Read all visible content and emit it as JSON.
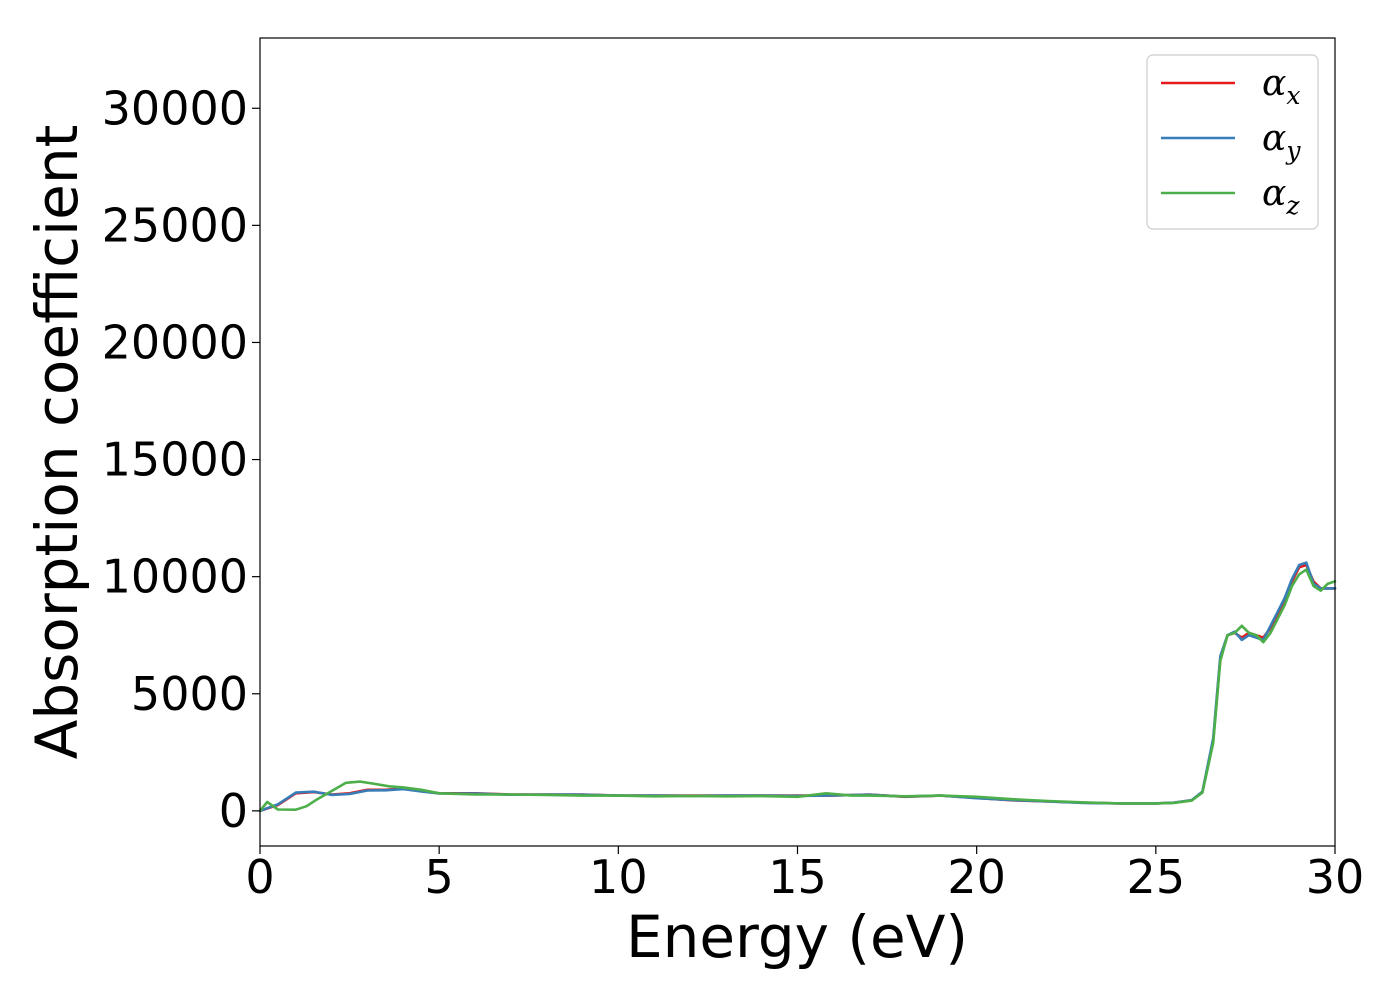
{
  "chart_data": {
    "type": "line",
    "xlabel": "Energy (eV)",
    "ylabel": "Absorption coefficient",
    "xlim": [
      0,
      30
    ],
    "ylim": [
      -1500,
      33000
    ],
    "xticks": [
      0,
      5,
      10,
      15,
      20,
      25,
      30
    ],
    "yticks": [
      0,
      5000,
      10000,
      15000,
      20000,
      25000,
      30000
    ],
    "grid": false,
    "legend_position": "top-right",
    "series": [
      {
        "name": "α",
        "subscript": "x",
        "color": "#e41a1c",
        "x": [
          0,
          0.5,
          1.0,
          1.5,
          2.0,
          2.5,
          3.0,
          3.5,
          4.0,
          4.5,
          5.0,
          6.0,
          7.0,
          8.0,
          9.0,
          10.0,
          11.0,
          12.0,
          13.0,
          14.0,
          15.0,
          16.0,
          17.0,
          18.0,
          19.0,
          20.0,
          21.0,
          22.0,
          23.0,
          24.0,
          25.0,
          25.5,
          26.0,
          26.3,
          26.6,
          26.8,
          27.0,
          27.2,
          27.4,
          27.6,
          27.8,
          28.0,
          28.2,
          28.4,
          28.6,
          28.8,
          29.0,
          29.2,
          29.4,
          29.6,
          29.8,
          30.0
        ],
        "y": [
          0,
          250,
          750,
          800,
          700,
          750,
          900,
          900,
          950,
          850,
          750,
          750,
          700,
          700,
          700,
          650,
          650,
          650,
          650,
          650,
          650,
          650,
          700,
          600,
          650,
          550,
          450,
          400,
          350,
          320,
          320,
          350,
          450,
          800,
          3000,
          6500,
          7500,
          7600,
          7400,
          7600,
          7500,
          7400,
          7800,
          8400,
          9000,
          9800,
          10400,
          10500,
          9800,
          9500,
          9500,
          9500
        ]
      },
      {
        "name": "α",
        "subscript": "y",
        "color": "#377eb8",
        "x": [
          0,
          0.5,
          1.0,
          1.5,
          2.0,
          2.5,
          3.0,
          3.5,
          4.0,
          4.5,
          5.0,
          6.0,
          7.0,
          8.0,
          9.0,
          10.0,
          11.0,
          12.0,
          13.0,
          14.0,
          15.0,
          16.0,
          17.0,
          18.0,
          19.0,
          20.0,
          21.0,
          22.0,
          23.0,
          24.0,
          25.0,
          25.5,
          26.0,
          26.3,
          26.6,
          26.8,
          27.0,
          27.2,
          27.4,
          27.6,
          27.8,
          28.0,
          28.2,
          28.4,
          28.6,
          28.8,
          29.0,
          29.2,
          29.4,
          29.6,
          29.8,
          30.0
        ],
        "y": [
          0,
          280,
          780,
          820,
          680,
          720,
          870,
          880,
          930,
          830,
          740,
          740,
          690,
          700,
          690,
          650,
          650,
          640,
          650,
          650,
          640,
          660,
          690,
          610,
          650,
          540,
          460,
          400,
          340,
          320,
          320,
          350,
          460,
          820,
          3100,
          6600,
          7500,
          7650,
          7300,
          7500,
          7400,
          7300,
          7900,
          8500,
          9100,
          9900,
          10500,
          10600,
          9700,
          9500,
          9500,
          9500
        ]
      },
      {
        "name": "α",
        "subscript": "z",
        "color": "#4daf4a",
        "x": [
          0,
          0.2,
          0.5,
          1.0,
          1.3,
          1.6,
          2.0,
          2.4,
          2.8,
          3.2,
          3.6,
          4.0,
          4.5,
          5.0,
          6.0,
          7.0,
          8.0,
          9.0,
          10.0,
          11.0,
          12.0,
          13.0,
          14.0,
          15.0,
          15.8,
          16.5,
          17.0,
          18.0,
          19.0,
          20.0,
          21.0,
          22.0,
          23.0,
          24.0,
          25.0,
          25.5,
          26.0,
          26.3,
          26.6,
          26.8,
          27.0,
          27.2,
          27.4,
          27.6,
          27.8,
          28.0,
          28.2,
          28.4,
          28.6,
          28.8,
          29.0,
          29.2,
          29.4,
          29.6,
          29.8,
          30.0
        ],
        "y": [
          0,
          380,
          60,
          50,
          200,
          500,
          850,
          1200,
          1250,
          1150,
          1050,
          1000,
          900,
          750,
          700,
          700,
          680,
          650,
          650,
          620,
          640,
          620,
          630,
          600,
          750,
          650,
          650,
          620,
          650,
          600,
          500,
          420,
          360,
          320,
          320,
          340,
          440,
          780,
          2900,
          6400,
          7500,
          7600,
          7900,
          7600,
          7500,
          7200,
          7600,
          8200,
          8800,
          9600,
          10100,
          10300,
          9600,
          9400,
          9700,
          9800
        ]
      }
    ]
  }
}
